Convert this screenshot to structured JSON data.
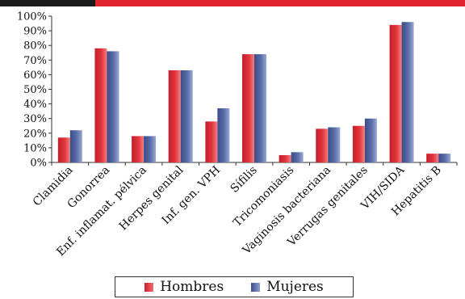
{
  "colors": {
    "hombres": "#e0343c",
    "mujeres": "#5b6ea8",
    "accent_bar": "#e0242e"
  },
  "chart_data": {
    "type": "bar",
    "categories": [
      "Clamidia",
      "Gonorrea",
      "Enf. inflamat. pélvica",
      "Herpes genital",
      "Inf. gen. VPH",
      "Sífilis",
      "Tricomoniasis",
      "Vaginosis bacteriana",
      "Verrugas genitales",
      "VIH/SIDA",
      "Hepatitis B"
    ],
    "series": [
      {
        "name": "Hombres",
        "values": [
          17,
          78,
          18,
          63,
          28,
          74,
          5,
          23,
          25,
          94,
          6
        ]
      },
      {
        "name": "Mujeres",
        "values": [
          22,
          76,
          18,
          63,
          37,
          74,
          7,
          24,
          30,
          96,
          6
        ]
      }
    ],
    "yticks": [
      "0%",
      "10%",
      "20%",
      "30%",
      "40%",
      "50%",
      "60%",
      "70%",
      "80%",
      "90%",
      "100%"
    ],
    "ylim": [
      0,
      100
    ],
    "title": "",
    "xlabel": "",
    "ylabel": "",
    "legend": "bottom",
    "grid": false
  }
}
